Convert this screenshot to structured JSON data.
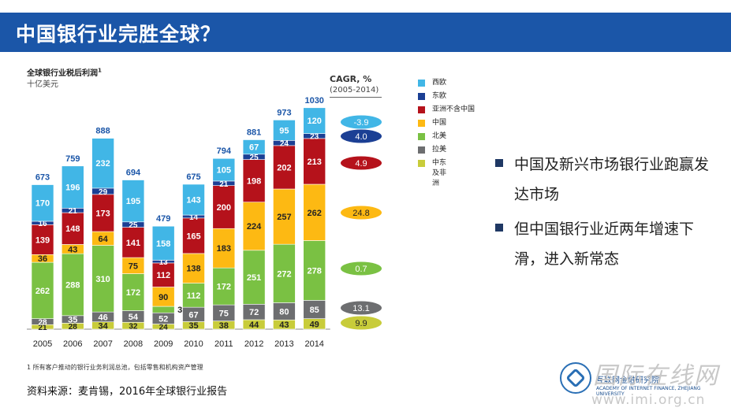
{
  "page_title": "中国银行业完胜全球？",
  "chart_data": {
    "type": "bar",
    "stacked": true,
    "title": "全球银行业税后利润",
    "title_footnote_marker": "1",
    "subtitle": "十亿美元",
    "categories": [
      "2005",
      "2006",
      "2007",
      "2008",
      "2009",
      "2010",
      "2011",
      "2012",
      "2013",
      "2014"
    ],
    "totals": [
      673,
      759,
      888,
      694,
      479,
      675,
      794,
      881,
      973,
      1030
    ],
    "series": [
      {
        "name": "中东及非洲",
        "color": "#c8cc3a",
        "values": [
          21,
          28,
          34,
          32,
          24,
          35,
          38,
          44,
          43,
          49
        ]
      },
      {
        "name": "拉美",
        "color": "#6d6e70",
        "values": [
          28,
          35,
          46,
          54,
          52,
          67,
          75,
          72,
          80,
          85
        ]
      },
      {
        "name": "北美",
        "color": "#7ac143",
        "values": [
          262,
          288,
          310,
          172,
          30,
          112,
          172,
          251,
          272,
          278
        ]
      },
      {
        "name": "中国",
        "color": "#fdb913",
        "values": [
          36,
          43,
          64,
          75,
          90,
          138,
          183,
          224,
          257,
          262
        ]
      },
      {
        "name": "亚洲不含中国",
        "color": "#b5121b",
        "values": [
          139,
          148,
          173,
          141,
          112,
          165,
          200,
          198,
          202,
          213
        ]
      },
      {
        "name": "东欧",
        "color": "#1b3f94",
        "values": [
          16,
          21,
          29,
          25,
          13,
          14,
          21,
          25,
          24,
          23
        ]
      },
      {
        "name": "西欧",
        "color": "#41b6e6",
        "values": [
          170,
          196,
          232,
          195,
          158,
          143,
          105,
          67,
          95,
          120
        ]
      }
    ],
    "cagr": {
      "title": "CAGR, %",
      "range": "(2005-2014)",
      "values": [
        {
          "series": "西欧",
          "value": "-3.9",
          "color": "#41b6e6"
        },
        {
          "series": "东欧",
          "value": "4.0",
          "color": "#1b3f94"
        },
        {
          "series": "亚洲不含中国",
          "value": "4.9",
          "color": "#b5121b"
        },
        {
          "series": "中国",
          "value": "24.8",
          "color": "#fdb913"
        },
        {
          "series": "北美",
          "value": "0.7",
          "color": "#7ac143"
        },
        {
          "series": "拉美",
          "value": "13.1",
          "color": "#6d6e70"
        },
        {
          "series": "中东及非洲",
          "value": "9.9",
          "color": "#c8cc3a"
        }
      ]
    }
  },
  "legend": [
    {
      "label": "西欧",
      "color": "#41b6e6"
    },
    {
      "label": "东欧",
      "color": "#1b3f94"
    },
    {
      "label": "亚洲不含中国",
      "color": "#b5121b"
    },
    {
      "label": "中国",
      "color": "#fdb913"
    },
    {
      "label": "北美",
      "color": "#7ac143"
    },
    {
      "label": "拉美",
      "color": "#6d6e70"
    },
    {
      "label": "中东及非洲",
      "color": "#c8cc3a"
    }
  ],
  "bullets": [
    "中国及新兴市场银行业跑赢发达市场",
    "但中国银行业近两年增速下滑，进入新常态"
  ],
  "footnote": "1 所有客户推动的银行业务利润总池，包括零售和机构资产管理",
  "source": "资料来源：麦肯锡，2016年全球银行业报告",
  "logo": {
    "cn": "互联网金融研究院",
    "en": "ACADEMY OF INTERNET FINANCE, ZHEJIANG UNIVERSITY"
  },
  "watermark": {
    "text": "国际在线网",
    "url": "www.imi.org.cn"
  }
}
